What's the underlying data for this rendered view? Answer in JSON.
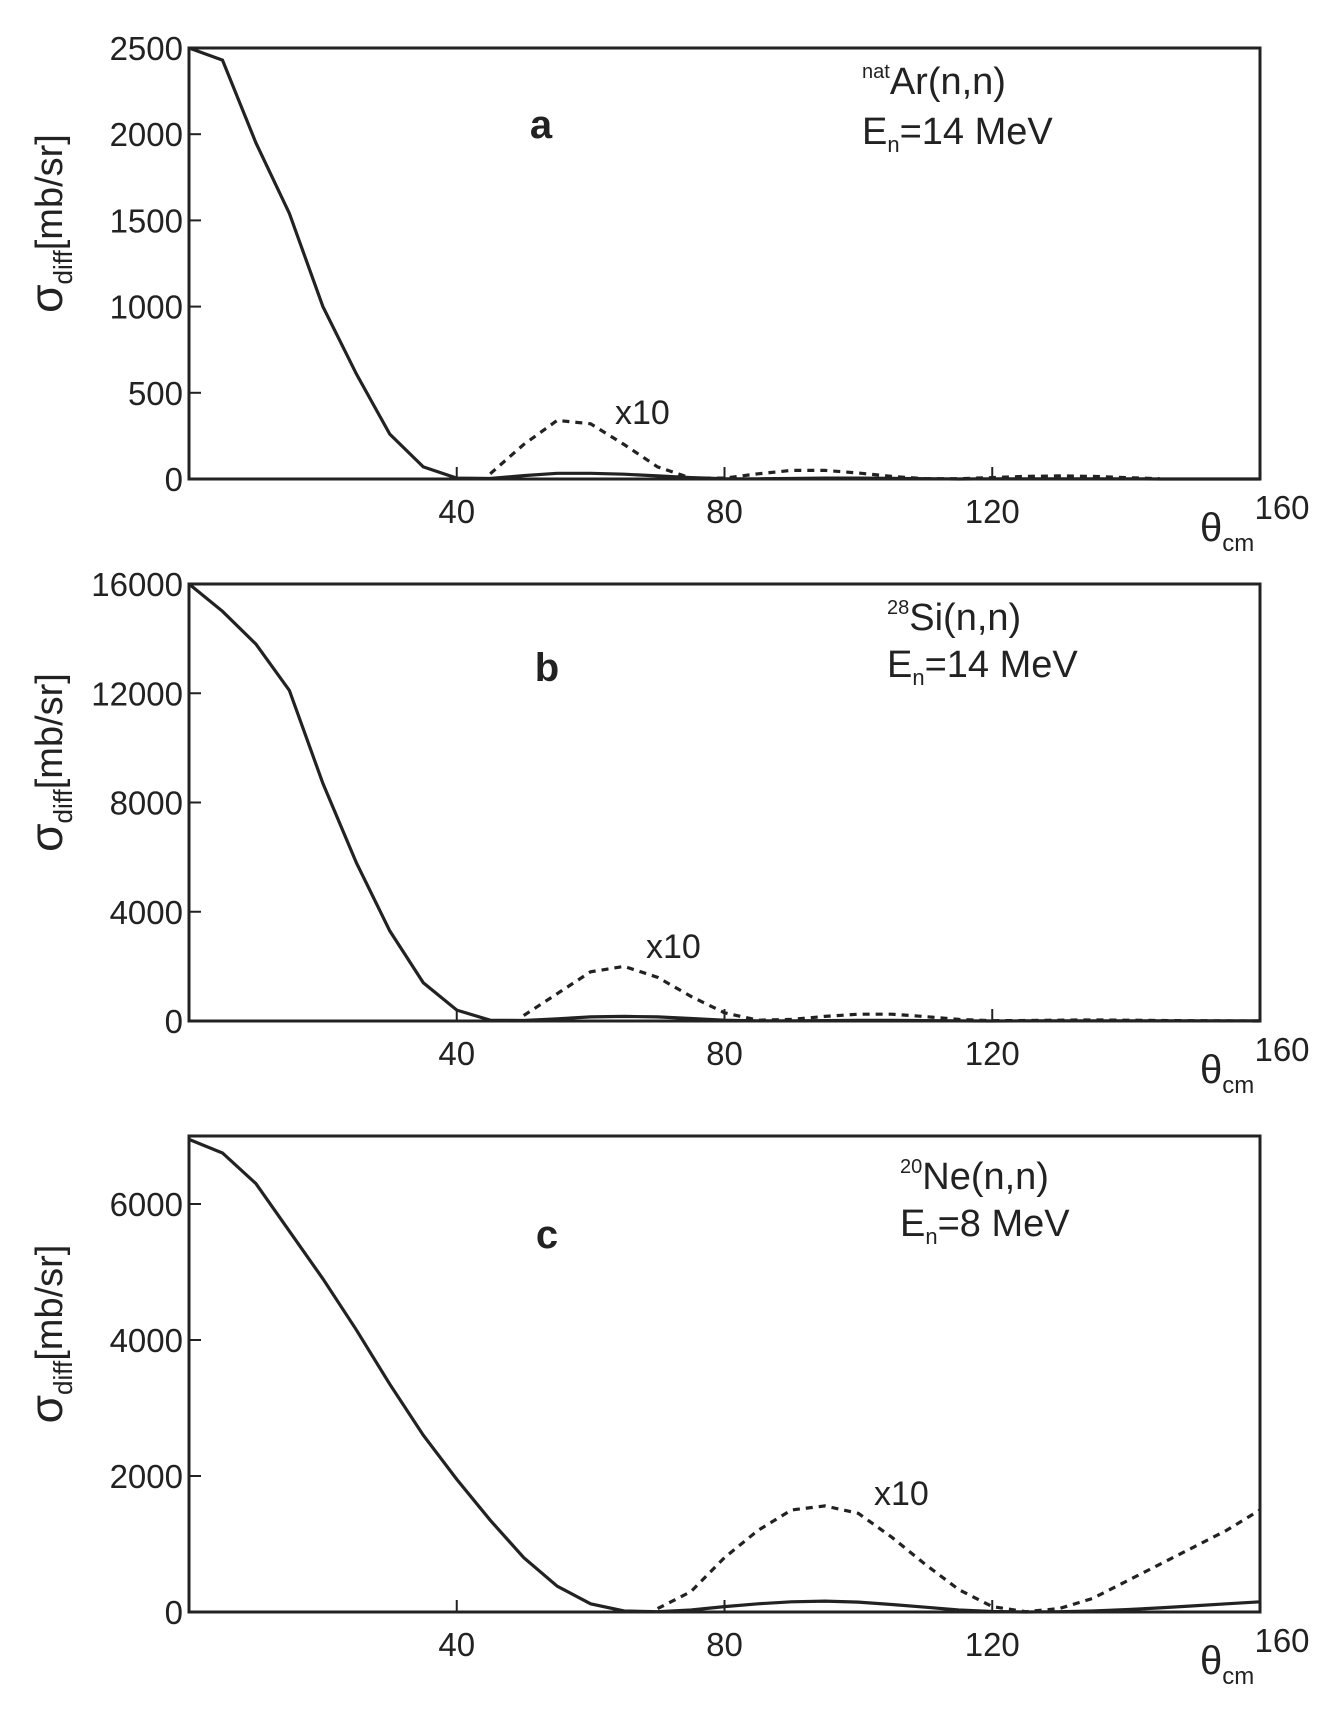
{
  "chart_data": [
    {
      "type": "line",
      "panel": "a",
      "reaction": {
        "superscript": "nat",
        "text": "Ar(n,n)"
      },
      "energy": {
        "text": "E",
        "subscript": "n",
        "rest": "=14 MeV"
      },
      "annotation": "x10",
      "ylabel": {
        "symbol": "σ",
        "subscript": "diff",
        "unit": "[mb/sr]"
      },
      "xlabel": {
        "symbol": "θ",
        "subscript": "cm"
      },
      "xlim": [
        0,
        160
      ],
      "xticks": [
        40,
        80,
        120,
        160
      ],
      "ylim": [
        0,
        2500
      ],
      "yticks": [
        0,
        500,
        1000,
        1500,
        2000,
        2500
      ],
      "x": [
        0,
        5,
        10,
        15,
        20,
        25,
        30,
        35,
        40,
        45,
        50,
        55,
        60,
        65,
        70,
        75,
        80,
        85,
        90,
        95,
        100,
        105,
        110,
        115,
        120,
        125,
        130,
        135,
        140,
        145,
        150,
        155,
        160
      ],
      "series": [
        {
          "color": "#222222",
          "style": "solid",
          "values": [
            2500,
            2430,
            1950,
            1540,
            1000,
            610,
            260,
            70,
            5,
            3,
            20,
            33,
            33,
            28,
            18,
            8,
            2,
            1,
            3,
            5,
            5,
            4,
            2,
            0,
            1,
            1,
            1,
            1,
            1,
            0,
            0,
            0,
            0
          ]
        },
        {
          "color": "#222222",
          "style": "dashed",
          "values": [
            null,
            null,
            null,
            null,
            null,
            null,
            null,
            null,
            null,
            30,
            200,
            340,
            320,
            200,
            70,
            5,
            5,
            30,
            50,
            50,
            35,
            15,
            2,
            2,
            8,
            15,
            18,
            15,
            8,
            2,
            null,
            null,
            null
          ]
        }
      ]
    },
    {
      "type": "line",
      "panel": "b",
      "reaction": {
        "superscript": "28",
        "text": "Si(n,n)"
      },
      "energy": {
        "text": "E",
        "subscript": "n",
        "rest": "=14 MeV"
      },
      "annotation": "x10",
      "ylabel": {
        "symbol": "σ",
        "subscript": "diff",
        "unit": "[mb/sr]"
      },
      "xlabel": {
        "symbol": "θ",
        "subscript": "cm"
      },
      "xlim": [
        0,
        160
      ],
      "xticks": [
        40,
        80,
        120,
        160
      ],
      "ylim": [
        0,
        16000
      ],
      "yticks": [
        0,
        4000,
        8000,
        12000,
        16000
      ],
      "x": [
        0,
        5,
        10,
        15,
        20,
        25,
        30,
        35,
        40,
        45,
        50,
        55,
        60,
        65,
        70,
        75,
        80,
        85,
        90,
        95,
        100,
        105,
        110,
        115,
        120,
        125,
        130,
        135,
        140,
        145,
        150,
        155,
        160
      ],
      "series": [
        {
          "color": "#222222",
          "style": "solid",
          "values": [
            16000,
            15000,
            13800,
            12100,
            8700,
            5800,
            3300,
            1400,
            400,
            30,
            20,
            80,
            150,
            170,
            150,
            90,
            30,
            5,
            2,
            15,
            25,
            25,
            15,
            5,
            1,
            2,
            2,
            2,
            2,
            2,
            2,
            2,
            2
          ]
        },
        {
          "color": "#222222",
          "style": "dashed",
          "values": [
            null,
            null,
            null,
            null,
            null,
            null,
            null,
            null,
            null,
            null,
            200,
            1000,
            1800,
            2000,
            1600,
            900,
            300,
            30,
            60,
            170,
            250,
            250,
            160,
            60,
            10,
            20,
            30,
            40,
            30,
            20,
            10,
            5,
            0
          ]
        }
      ]
    },
    {
      "type": "line",
      "panel": "c",
      "reaction": {
        "superscript": "20",
        "text": "Ne(n,n)"
      },
      "energy": {
        "text": "E",
        "subscript": "n",
        "rest": "=8 MeV"
      },
      "annotation": "x10",
      "ylabel": {
        "symbol": "σ",
        "subscript": "diff",
        "unit": "[mb/sr]"
      },
      "xlabel": {
        "symbol": "θ",
        "subscript": "cm"
      },
      "xlim": [
        0,
        160
      ],
      "xticks": [
        40,
        80,
        120,
        160
      ],
      "ylim": [
        0,
        7000
      ],
      "yticks": [
        0,
        2000,
        4000,
        6000
      ],
      "x": [
        0,
        5,
        10,
        15,
        20,
        25,
        30,
        35,
        40,
        45,
        50,
        55,
        60,
        65,
        70,
        75,
        80,
        85,
        90,
        95,
        100,
        105,
        110,
        115,
        120,
        125,
        130,
        135,
        140,
        145,
        150,
        155,
        160
      ],
      "series": [
        {
          "color": "#222222",
          "style": "solid",
          "values": [
            6950,
            6750,
            6300,
            5600,
            4900,
            4150,
            3350,
            2600,
            1950,
            1350,
            800,
            380,
            120,
            15,
            5,
            30,
            80,
            120,
            150,
            160,
            145,
            110,
            70,
            30,
            8,
            0,
            5,
            15,
            35,
            60,
            90,
            120,
            150
          ]
        },
        {
          "color": "#222222",
          "style": "dashed",
          "values": [
            null,
            null,
            null,
            null,
            null,
            null,
            null,
            null,
            null,
            null,
            null,
            null,
            null,
            null,
            50,
            300,
            800,
            1200,
            1500,
            1560,
            1450,
            1100,
            700,
            330,
            80,
            5,
            50,
            200,
            450,
            700,
            950,
            1200,
            1500
          ]
        }
      ]
    }
  ]
}
